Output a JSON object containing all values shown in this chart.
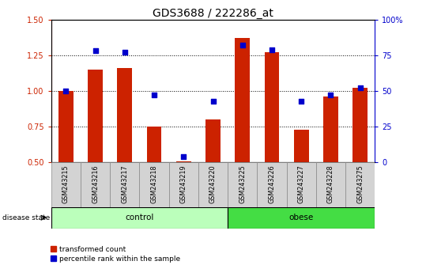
{
  "title": "GDS3688 / 222286_at",
  "samples": [
    "GSM243215",
    "GSM243216",
    "GSM243217",
    "GSM243218",
    "GSM243219",
    "GSM243220",
    "GSM243225",
    "GSM243226",
    "GSM243227",
    "GSM243228",
    "GSM243275"
  ],
  "red_values": [
    1.0,
    1.15,
    1.16,
    0.75,
    0.51,
    0.8,
    1.37,
    1.27,
    0.73,
    0.96,
    1.02
  ],
  "blue_values": [
    50,
    78,
    77,
    47,
    4,
    43,
    82,
    79,
    43,
    47,
    52
  ],
  "ylim_left": [
    0.5,
    1.5
  ],
  "ylim_right": [
    0,
    100
  ],
  "yticks_left": [
    0.5,
    0.75,
    1.0,
    1.25,
    1.5
  ],
  "yticks_right": [
    0,
    25,
    50,
    75,
    100
  ],
  "bar_color": "#CC2200",
  "dot_color": "#0000CC",
  "control_color": "#BBFFBB",
  "obese_color": "#44DD44",
  "n_control": 6,
  "n_obese": 5,
  "legend_red": "transformed count",
  "legend_blue": "percentile rank within the sample",
  "disease_label": "disease state",
  "control_label": "control",
  "obese_label": "obese",
  "bar_width": 0.5,
  "tick_label_fontsize": 7,
  "title_fontsize": 10,
  "background_color": "#FFFFFF"
}
